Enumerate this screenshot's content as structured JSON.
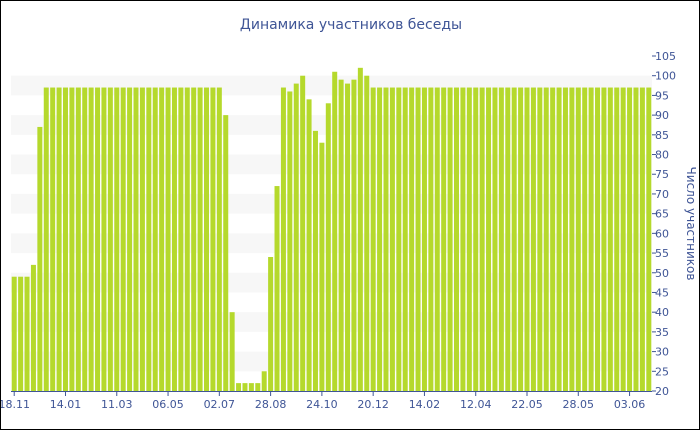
{
  "chart_data": {
    "type": "bar",
    "title": "Динамика участников беседы",
    "xlabel": "",
    "ylabel": "Число участников",
    "ylim": [
      20,
      105
    ],
    "y_ticks": [
      20,
      25,
      30,
      35,
      40,
      45,
      50,
      55,
      60,
      65,
      70,
      75,
      80,
      85,
      90,
      95,
      100,
      105
    ],
    "y_axis_position": "right",
    "grid": "horizontal alternating bands",
    "legend": "none",
    "x_tick_labels": [
      "18.11",
      "14.01",
      "11.03",
      "06.05",
      "02.07",
      "28.08",
      "24.10",
      "20.12",
      "14.02",
      "12.04",
      "22.05",
      "28.05",
      "03.06"
    ],
    "x_tick_bar_index": [
      0,
      8,
      16,
      24,
      32,
      40,
      48,
      56,
      64,
      72,
      80,
      88,
      96
    ],
    "values": [
      49,
      49,
      49,
      52,
      87,
      97,
      97,
      97,
      97,
      97,
      97,
      97,
      97,
      97,
      97,
      97,
      97,
      97,
      97,
      97,
      97,
      97,
      97,
      97,
      97,
      97,
      97,
      97,
      97,
      97,
      97,
      97,
      97,
      90,
      40,
      22,
      22,
      22,
      22,
      25,
      54,
      72,
      97,
      96,
      98,
      100,
      94,
      86,
      83,
      93,
      101,
      99,
      98,
      99,
      102,
      100,
      97,
      97,
      97,
      97,
      97,
      97,
      97,
      97,
      97,
      97,
      97,
      97,
      97,
      97,
      97,
      97,
      97,
      97,
      97,
      97,
      97,
      97,
      97,
      97,
      97,
      97,
      97,
      97,
      97,
      97,
      97,
      97,
      97,
      97,
      97,
      97,
      97,
      97,
      97,
      97,
      97,
      97,
      97,
      97
    ],
    "colors": {
      "bar": "#b5d92c",
      "band": "#f7f7f7",
      "text": "#3f5596",
      "axis": "#3f5596"
    }
  }
}
